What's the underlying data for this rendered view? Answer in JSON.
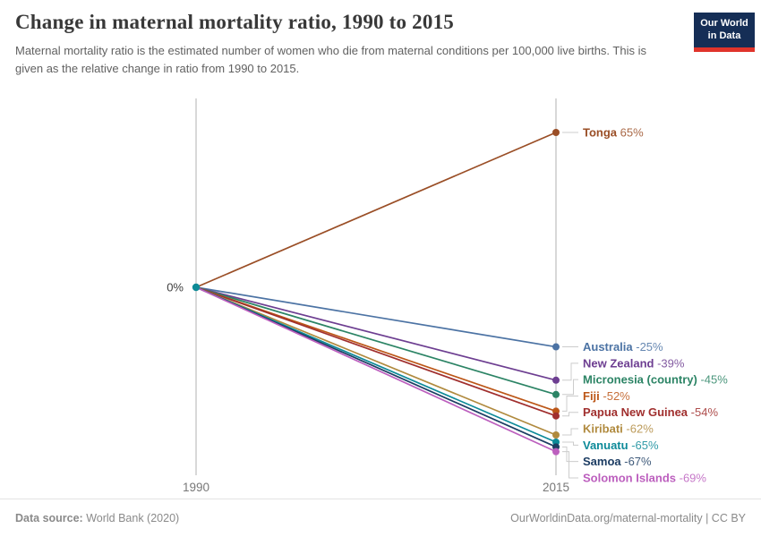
{
  "header": {
    "title": "Change in maternal mortality ratio, 1990 to 2015",
    "subtitle": "Maternal mortality ratio is the estimated number of women who die from maternal conditions per 100,000 live births. This is given as the relative change in ratio from 1990 to 2015."
  },
  "logo": {
    "line1": "Our World",
    "line2": "in Data"
  },
  "chart_data": {
    "type": "line",
    "variant": "slope",
    "x": [
      "1990",
      "2015"
    ],
    "start_tick_label": "0%",
    "ylim": [
      -69,
      65
    ],
    "grid": false,
    "legend_position": "right-labels",
    "axis_color": "#cfcfcf",
    "connector_color": "#cccccc",
    "tick_label_color": "#787878",
    "zero_label_color": "#3d3d3d",
    "origin_dot_color": "#0e8a96",
    "series": [
      {
        "name": "Tonga",
        "start": 0,
        "end": 65,
        "label": "65%",
        "color": "#9a4e26"
      },
      {
        "name": "Australia",
        "start": 0,
        "end": -25,
        "label": "-25%",
        "color": "#4c73a4"
      },
      {
        "name": "New Zealand",
        "start": 0,
        "end": -39,
        "label": "-39%",
        "color": "#6d3e91"
      },
      {
        "name": "Micronesia (country)",
        "start": 0,
        "end": -45,
        "label": "-45%",
        "color": "#2c8465"
      },
      {
        "name": "Fiji",
        "start": 0,
        "end": -52,
        "label": "-52%",
        "color": "#bc5617"
      },
      {
        "name": "Papua New Guinea",
        "start": 0,
        "end": -54,
        "label": "-54%",
        "color": "#a02f2e"
      },
      {
        "name": "Kiribati",
        "start": 0,
        "end": -62,
        "label": "-62%",
        "color": "#b08a3e"
      },
      {
        "name": "Vanuatu",
        "start": 0,
        "end": -65,
        "label": "-65%",
        "color": "#0d8a99"
      },
      {
        "name": "Samoa",
        "start": 0,
        "end": -67,
        "label": "-67%",
        "color": "#1d3d63"
      },
      {
        "name": "Solomon Islands",
        "start": 0,
        "end": -69,
        "label": "-69%",
        "color": "#bc5fbe"
      }
    ]
  },
  "footer": {
    "datasource_prefix": "Data source:",
    "datasource": " World Bank (2020)",
    "citation": "OurWorldinData.org/maternal-mortality | CC BY"
  }
}
